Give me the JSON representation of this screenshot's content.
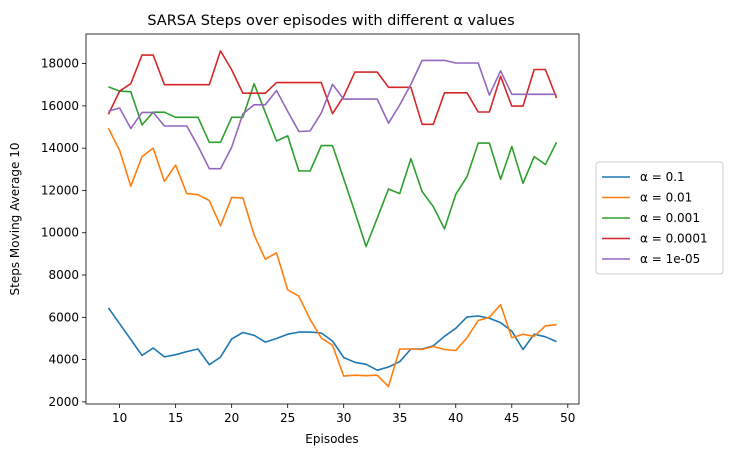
{
  "chart_data": {
    "type": "line",
    "title": "SARSA Steps over episodes with different α values",
    "xlabel": "Episodes",
    "ylabel": "Steps Moving Average 10",
    "xlim": [
      7.0,
      51.0
    ],
    "ylim": [
      1900,
      19400
    ],
    "xticks": [
      10,
      15,
      20,
      25,
      30,
      35,
      40,
      45,
      50
    ],
    "yticks": [
      2000,
      4000,
      6000,
      8000,
      10000,
      12000,
      14000,
      16000,
      18000
    ],
    "grid": false,
    "legend_position": "outside-right",
    "x": [
      9,
      10,
      11,
      12,
      13,
      14,
      15,
      16,
      17,
      18,
      19,
      20,
      21,
      22,
      23,
      24,
      25,
      26,
      27,
      28,
      29,
      30,
      31,
      32,
      33,
      34,
      35,
      36,
      37,
      38,
      39,
      40,
      41,
      42,
      43,
      44,
      45,
      46,
      47,
      48,
      49
    ],
    "series": [
      {
        "name": "α = 0.1",
        "color": "#1f77b4",
        "values": [
          6450,
          5700,
          4950,
          4200,
          4550,
          4130,
          4230,
          4380,
          4500,
          3760,
          4120,
          4980,
          5280,
          5150,
          4830,
          5000,
          5200,
          5300,
          5300,
          5260,
          4880,
          4100,
          3870,
          3780,
          3500,
          3650,
          3900,
          4500,
          4500,
          4650,
          5100,
          5480,
          6020,
          6060,
          5960,
          5750,
          5350,
          4480,
          5200,
          5080,
          4850
        ]
      },
      {
        "name": "α = 0.01",
        "color": "#ff7f0e",
        "values": [
          14950,
          13900,
          12200,
          13600,
          14000,
          12430,
          13200,
          11850,
          11800,
          11520,
          10330,
          11670,
          11650,
          9900,
          8750,
          9050,
          7300,
          7000,
          5900,
          5020,
          4680,
          3220,
          3260,
          3240,
          3260,
          2730,
          4500,
          4500,
          4480,
          4620,
          4480,
          4430,
          5030,
          5850,
          6000,
          6600,
          5030,
          5200,
          5100,
          5600,
          5650
        ]
      },
      {
        "name": "α = 0.001",
        "color": "#2ca02c",
        "values": [
          16900,
          16700,
          16670,
          15100,
          15700,
          15700,
          15460,
          15460,
          15460,
          14280,
          14280,
          15460,
          15460,
          17050,
          15690,
          14340,
          14580,
          12920,
          12920,
          14120,
          14120,
          12550,
          10970,
          9350,
          10700,
          12070,
          11850,
          13500,
          11950,
          11230,
          10180,
          11820,
          12650,
          14240,
          14240,
          12530,
          14080,
          12340,
          13600,
          13230,
          14280
        ]
      },
      {
        "name": "α = 0.0001",
        "color": "#d62728",
        "values": [
          15600,
          16700,
          17050,
          18400,
          18400,
          17000,
          17000,
          17000,
          17000,
          17000,
          18600,
          17700,
          16600,
          16600,
          16600,
          17100,
          17100,
          17100,
          17100,
          17100,
          15630,
          16450,
          17600,
          17600,
          17600,
          16880,
          16880,
          16880,
          15130,
          15130,
          16620,
          16620,
          16620,
          15710,
          15710,
          17400,
          15990,
          15990,
          17720,
          17720,
          16370
        ]
      },
      {
        "name": "α = 1e-05",
        "color": "#9467bd",
        "values": [
          15750,
          15900,
          14930,
          15690,
          15690,
          15050,
          15050,
          15050,
          14100,
          13030,
          13030,
          14050,
          15620,
          16050,
          16050,
          16730,
          15740,
          14790,
          14810,
          15670,
          17020,
          16320,
          16320,
          16320,
          16320,
          15180,
          16040,
          17020,
          18150,
          18150,
          18150,
          18030,
          18030,
          18030,
          16510,
          17660,
          16550,
          16550,
          16550,
          16550,
          16550
        ]
      }
    ]
  }
}
